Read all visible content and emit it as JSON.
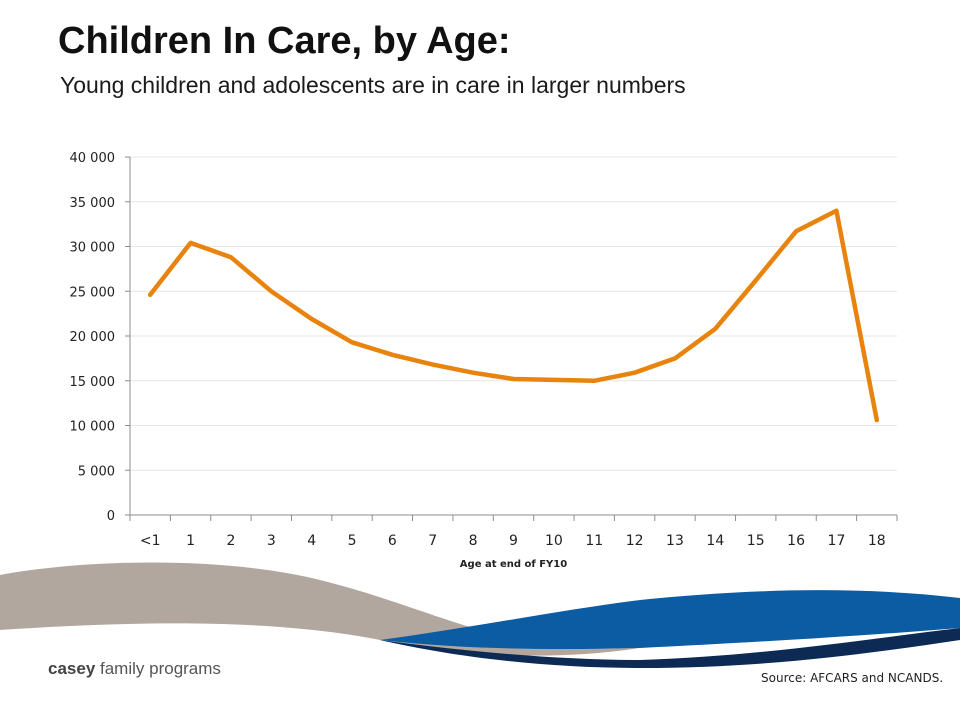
{
  "title": "Children In Care, by Age:",
  "subtitle": "Young children and adolescents are in care in larger numbers",
  "chart_data": {
    "type": "line",
    "title": "Children In Care, by Age:",
    "subtitle": "Young children and adolescents are in care in larger numbers",
    "xlabel": "Age at end of FY10",
    "ylabel": "",
    "categories": [
      "<1",
      "1",
      "2",
      "3",
      "4",
      "5",
      "6",
      "7",
      "8",
      "9",
      "10",
      "11",
      "12",
      "13",
      "14",
      "15",
      "16",
      "17",
      "18"
    ],
    "series": [
      {
        "values": [
          24600,
          30400,
          28800,
          25000,
          21900,
          19300,
          17900,
          16800,
          15900,
          15200,
          15100,
          15000,
          15900,
          17500,
          20800,
          26200,
          31700,
          34000,
          10600
        ]
      }
    ],
    "ylim": [
      0,
      40000
    ],
    "yticks": [
      0,
      5000,
      10000,
      15000,
      20000,
      25000,
      30000,
      35000,
      40000
    ],
    "ytick_labels": [
      "0",
      "5 000",
      "10 000",
      "15 000",
      "20 000",
      "25 000",
      "30 000",
      "35 000",
      "40 000"
    ],
    "grid": true,
    "legend": "none",
    "line_color": "#e8830d"
  },
  "footer": {
    "logo_bold": "casey",
    "logo_rest": " family programs",
    "source": "Source: AFCARS and NCANDS."
  },
  "colors": {
    "wave_gray": "#b1a79e",
    "wave_blue": "#0b5ca3",
    "wave_navy": "#0d2a55"
  }
}
